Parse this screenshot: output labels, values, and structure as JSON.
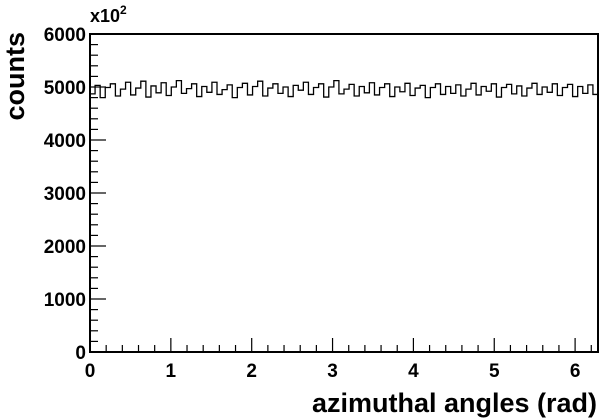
{
  "chart_data": {
    "type": "histogram",
    "xlabel": "azimuthal angles (rad)",
    "ylabel": "counts",
    "y_multiplier_base": "x10",
    "y_multiplier_exp": "2",
    "xlim": [
      0,
      6.2832
    ],
    "ylim": [
      0,
      6000
    ],
    "x_ticks": [
      0,
      1,
      2,
      3,
      4,
      5,
      6
    ],
    "x_tick_labels": [
      "0",
      "1",
      "2",
      "3",
      "4",
      "5",
      "6"
    ],
    "y_ticks": [
      0,
      1000,
      2000,
      3000,
      4000,
      5000,
      6000
    ],
    "y_tick_labels": [
      "0",
      "1000",
      "2000",
      "3000",
      "4000",
      "5000",
      "6000"
    ],
    "grid": false,
    "bin_count": 100,
    "values": [
      4870,
      5030,
      4800,
      4990,
      5060,
      4830,
      4960,
      5090,
      4850,
      4980,
      5110,
      4810,
      5020,
      4890,
      5080,
      4840,
      5000,
      5120,
      4880,
      4970,
      5060,
      4820,
      5010,
      4900,
      5090,
      4860,
      4950,
      5040,
      4800,
      4990,
      5070,
      4850,
      5010,
      5110,
      4830,
      4980,
      5060,
      4880,
      5000,
      4820,
      5030,
      4940,
      5090,
      4860,
      4990,
      5060,
      4810,
      5000,
      5120,
      4870,
      4960,
      5050,
      4830,
      5010,
      4890,
      5080,
      4850,
      4990,
      5060,
      4820,
      5000,
      4910,
      5070,
      4840,
      4980,
      5030,
      4800,
      4990,
      5060,
      4860,
      5010,
      4880,
      5040,
      4830,
      4960,
      5070,
      4850,
      5010,
      4920,
      5060,
      4810,
      4990,
      5050,
      4870,
      5020,
      4830,
      4980,
      5070,
      4860,
      5000,
      4900,
      5060,
      4840,
      4990,
      5050,
      4820,
      5010,
      4880,
      5040,
      4860
    ]
  }
}
